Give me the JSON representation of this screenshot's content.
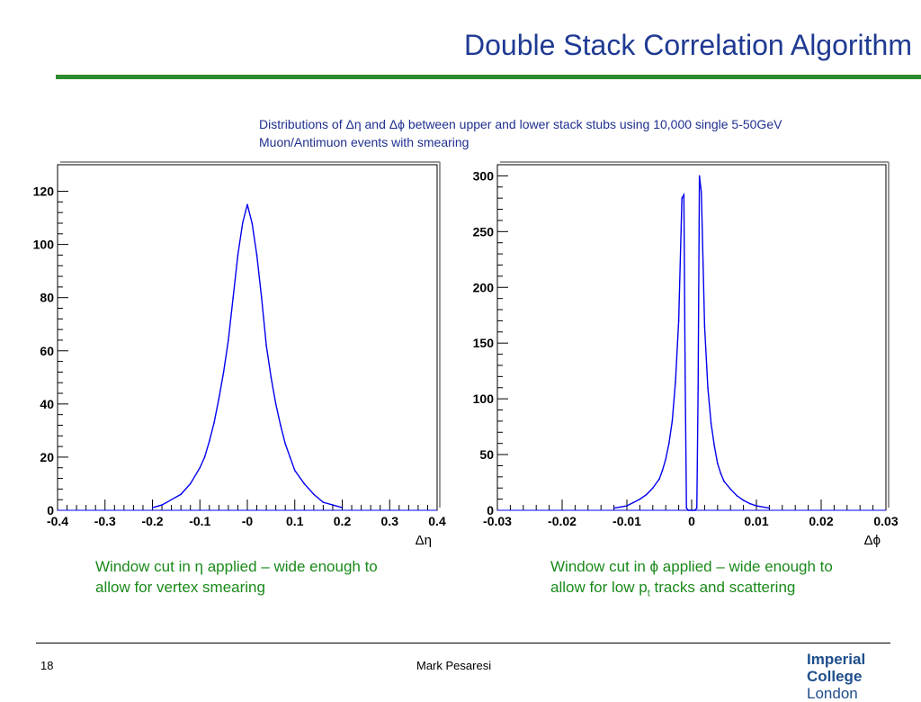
{
  "slide": {
    "title": "Double Stack Correlation Algorithm",
    "description_line1": "Distributions of Δη and Δϕ between upper and lower stack stubs using 10,000 single 5-50GeV",
    "description_line2": "Muon/Antimuon events with smearing",
    "caption_eta_line1": "Window cut in η applied – wide enough to",
    "caption_eta_line2": "allow for vertex smearing",
    "caption_phi_line1": "Window cut in ϕ applied – wide enough to",
    "caption_phi_line2_pre": "allow for low p",
    "caption_phi_sub": "t",
    "caption_phi_line2_post": " tracks and scattering",
    "page_number": "18",
    "author": "Mark Pesaresi",
    "logo_line1": "Imperial College",
    "logo_line2": "London",
    "colors": {
      "title": "#1f3a93",
      "rule": "#2e8b2e",
      "caption": "#1a8a1a",
      "histogram": "#0000ee"
    }
  },
  "chart_data": [
    {
      "type": "line",
      "style": "step-histogram",
      "xlabel": "Δη",
      "ylabel": "",
      "xlim": [
        -0.4,
        0.4
      ],
      "ylim": [
        0,
        130
      ],
      "x_ticks": [
        -0.4,
        -0.3,
        -0.2,
        -0.1,
        0,
        0.1,
        0.2,
        0.3,
        0.4
      ],
      "x_tick_labels": [
        "-0.4",
        "-0.3",
        "-0.2",
        "-0.1",
        "-0",
        "0.1",
        "0.2",
        "0.3",
        "0.4"
      ],
      "y_ticks": [
        0,
        20,
        40,
        60,
        80,
        100,
        120
      ],
      "y_tick_labels": [
        "0",
        "20",
        "40",
        "60",
        "80",
        "100",
        "120"
      ],
      "series": [
        {
          "x": [
            -0.2,
            -0.18,
            -0.16,
            -0.14,
            -0.12,
            -0.1,
            -0.09,
            -0.08,
            -0.07,
            -0.06,
            -0.05,
            -0.04,
            -0.03,
            -0.02,
            -0.01,
            0,
            0.01,
            0.02,
            0.03,
            0.04,
            0.05,
            0.06,
            0.07,
            0.08,
            0.09,
            0.1,
            0.12,
            0.14,
            0.16,
            0.18,
            0.2
          ],
          "y": [
            1,
            2,
            4,
            6,
            10,
            16,
            20,
            26,
            33,
            42,
            52,
            64,
            80,
            96,
            108,
            115,
            108,
            96,
            80,
            62,
            50,
            40,
            32,
            25,
            20,
            15,
            10,
            6,
            3,
            2,
            1
          ]
        }
      ]
    },
    {
      "type": "line",
      "style": "step-histogram",
      "xlabel": "Δϕ",
      "ylabel": "",
      "xlim": [
        -0.03,
        0.03
      ],
      "ylim": [
        0,
        310
      ],
      "x_ticks": [
        -0.03,
        -0.02,
        -0.01,
        0,
        0.01,
        0.02,
        0.03
      ],
      "x_tick_labels": [
        "-0.03",
        "-0.02",
        "-0.01",
        "0",
        "0.01",
        "0.02",
        "0.03"
      ],
      "y_ticks": [
        0,
        50,
        100,
        150,
        200,
        250,
        300
      ],
      "y_tick_labels": [
        "0",
        "50",
        "100",
        "150",
        "200",
        "250",
        "300"
      ],
      "series": [
        {
          "x": [
            -0.012,
            -0.01,
            -0.009,
            -0.008,
            -0.007,
            -0.006,
            -0.005,
            -0.0045,
            -0.004,
            -0.0035,
            -0.003,
            -0.0025,
            -0.002,
            -0.0015,
            -0.0012,
            -0.001,
            -0.0008,
            -0.0005,
            0,
            0.0005,
            0.0008,
            0.001,
            0.0012,
            0.0015,
            0.002,
            0.0025,
            0.003,
            0.0035,
            0.004,
            0.0045,
            0.005,
            0.006,
            0.007,
            0.008,
            0.009,
            0.01,
            0.012
          ],
          "y": [
            2,
            4,
            7,
            10,
            14,
            20,
            28,
            36,
            46,
            60,
            80,
            115,
            170,
            280,
            283,
            120,
            2,
            0,
            0,
            0,
            2,
            110,
            300,
            285,
            165,
            110,
            78,
            58,
            42,
            33,
            26,
            19,
            13,
            9,
            6,
            4,
            2
          ]
        }
      ]
    }
  ]
}
